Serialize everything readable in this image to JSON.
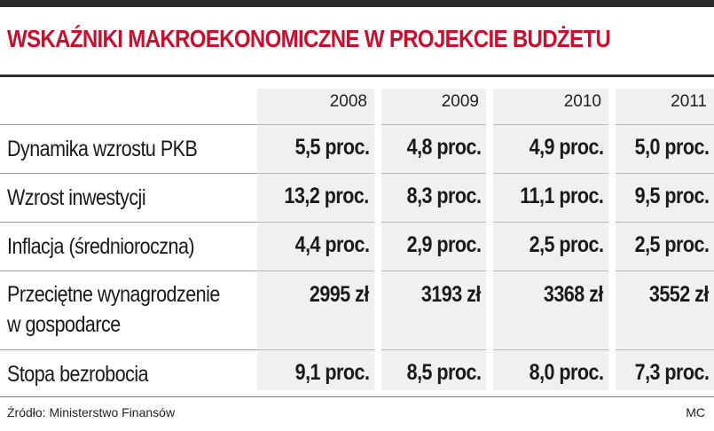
{
  "title": "WSKAŹNIKI MAKROEKONOMICZNE W PROJEKCIE BUDŻETU",
  "years": [
    "2008",
    "2009",
    "2010",
    "2011"
  ],
  "rows": [
    {
      "label": "Dynamika wzrostu PKB",
      "values": [
        "5,5 proc.",
        "4,8 proc.",
        "4,9 proc.",
        "5,0 proc."
      ]
    },
    {
      "label": "Wzrost inwestycji",
      "values": [
        "13,2 proc.",
        "8,3 proc.",
        "11,1 proc.",
        "9,5 proc."
      ]
    },
    {
      "label": "Inflacja (średnioroczna)",
      "values": [
        "4,4 proc.",
        "2,9 proc.",
        "2,5 proc.",
        "2,5 proc."
      ]
    },
    {
      "label_line1": "Przeciętne wynagrodzenie",
      "label_line2": "w gospodarce",
      "values": [
        "2995 zł",
        "3193 zł",
        "3368 zł",
        "3552 zł"
      ]
    },
    {
      "label": "Stopa bezrobocia",
      "values": [
        "9,1 proc.",
        "8,5 proc.",
        "8,0 proc.",
        "7,3 proc."
      ]
    }
  ],
  "source": "Źródło: Ministerstwo Finansów",
  "credit": "MC",
  "colors": {
    "title": "#c8102e",
    "column_background": "#f0f0f0",
    "rule": "#2b2b2b"
  }
}
